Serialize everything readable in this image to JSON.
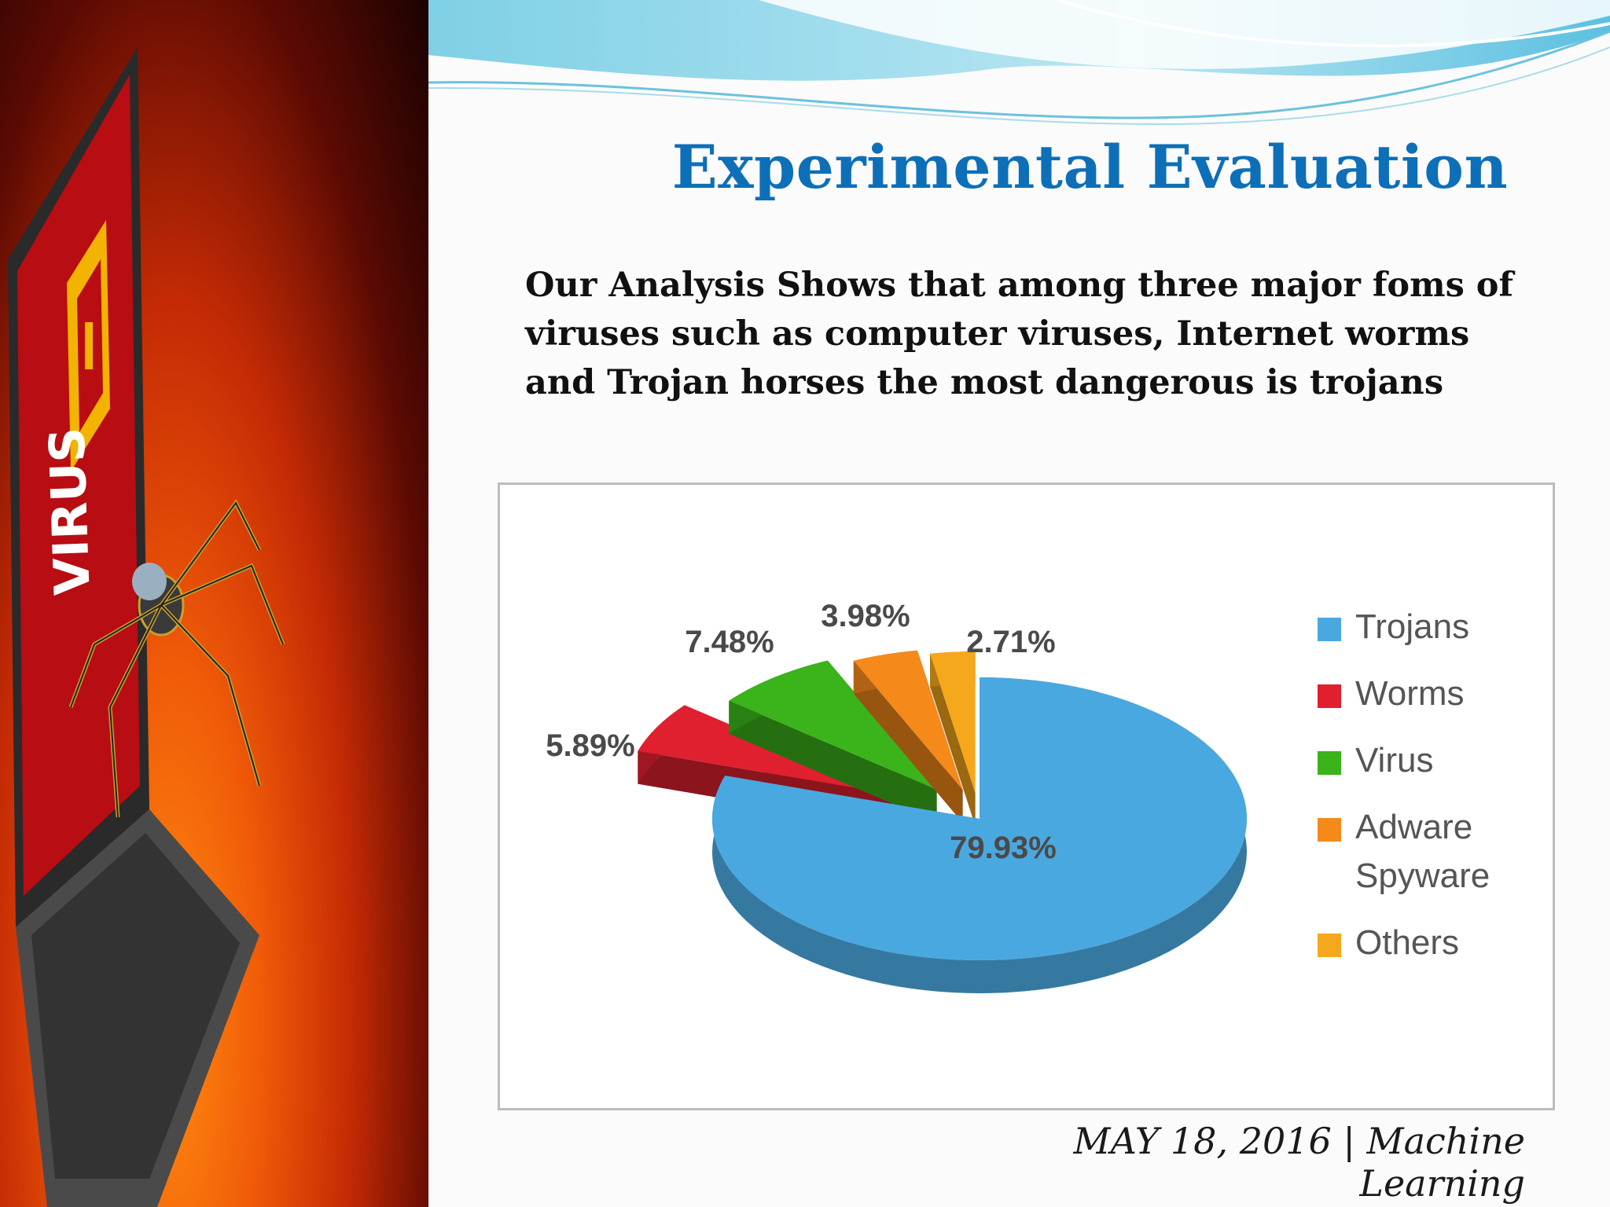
{
  "slide": {
    "title": "Experimental Evaluation",
    "body_lines": [
      "Our Analysis Shows that among three major foms of",
      "viruses such as computer viruses, Internet worms",
      "and Trojan horses the most dangerous is trojans"
    ],
    "side_image_text": "VIRUS",
    "footer_date": "MAY 18, 2016",
    "footer_separator": "|",
    "footer_topic": "Machine Learning"
  },
  "chart_data": {
    "type": "pie",
    "title": "",
    "slices": [
      {
        "name": "Trojans",
        "value": 79.93,
        "label": "79.93%",
        "color": "#4aa8e0"
      },
      {
        "name": "Worms",
        "value": 5.89,
        "label": "5.89%",
        "color": "#e0202e"
      },
      {
        "name": "Virus",
        "value": 7.48,
        "label": "7.48%",
        "color": "#3bb31a"
      },
      {
        "name": "Adware Spyware",
        "value": 3.98,
        "label": "3.98%",
        "color": "#f5891a"
      },
      {
        "name": "Others",
        "value": 2.71,
        "label": "2.71%",
        "color": "#f6a81c"
      }
    ],
    "legend": {
      "placement": "right",
      "entries": [
        {
          "lines": [
            "Trojans"
          ],
          "color": "#4aa8e0"
        },
        {
          "lines": [
            "Worms"
          ],
          "color": "#e0202e"
        },
        {
          "lines": [
            "Virus"
          ],
          "color": "#3bb31a"
        },
        {
          "lines": [
            "Adware",
            "Spyware"
          ],
          "color": "#f5891a"
        },
        {
          "lines": [
            "Others"
          ],
          "color": "#f6a81c"
        }
      ]
    }
  }
}
